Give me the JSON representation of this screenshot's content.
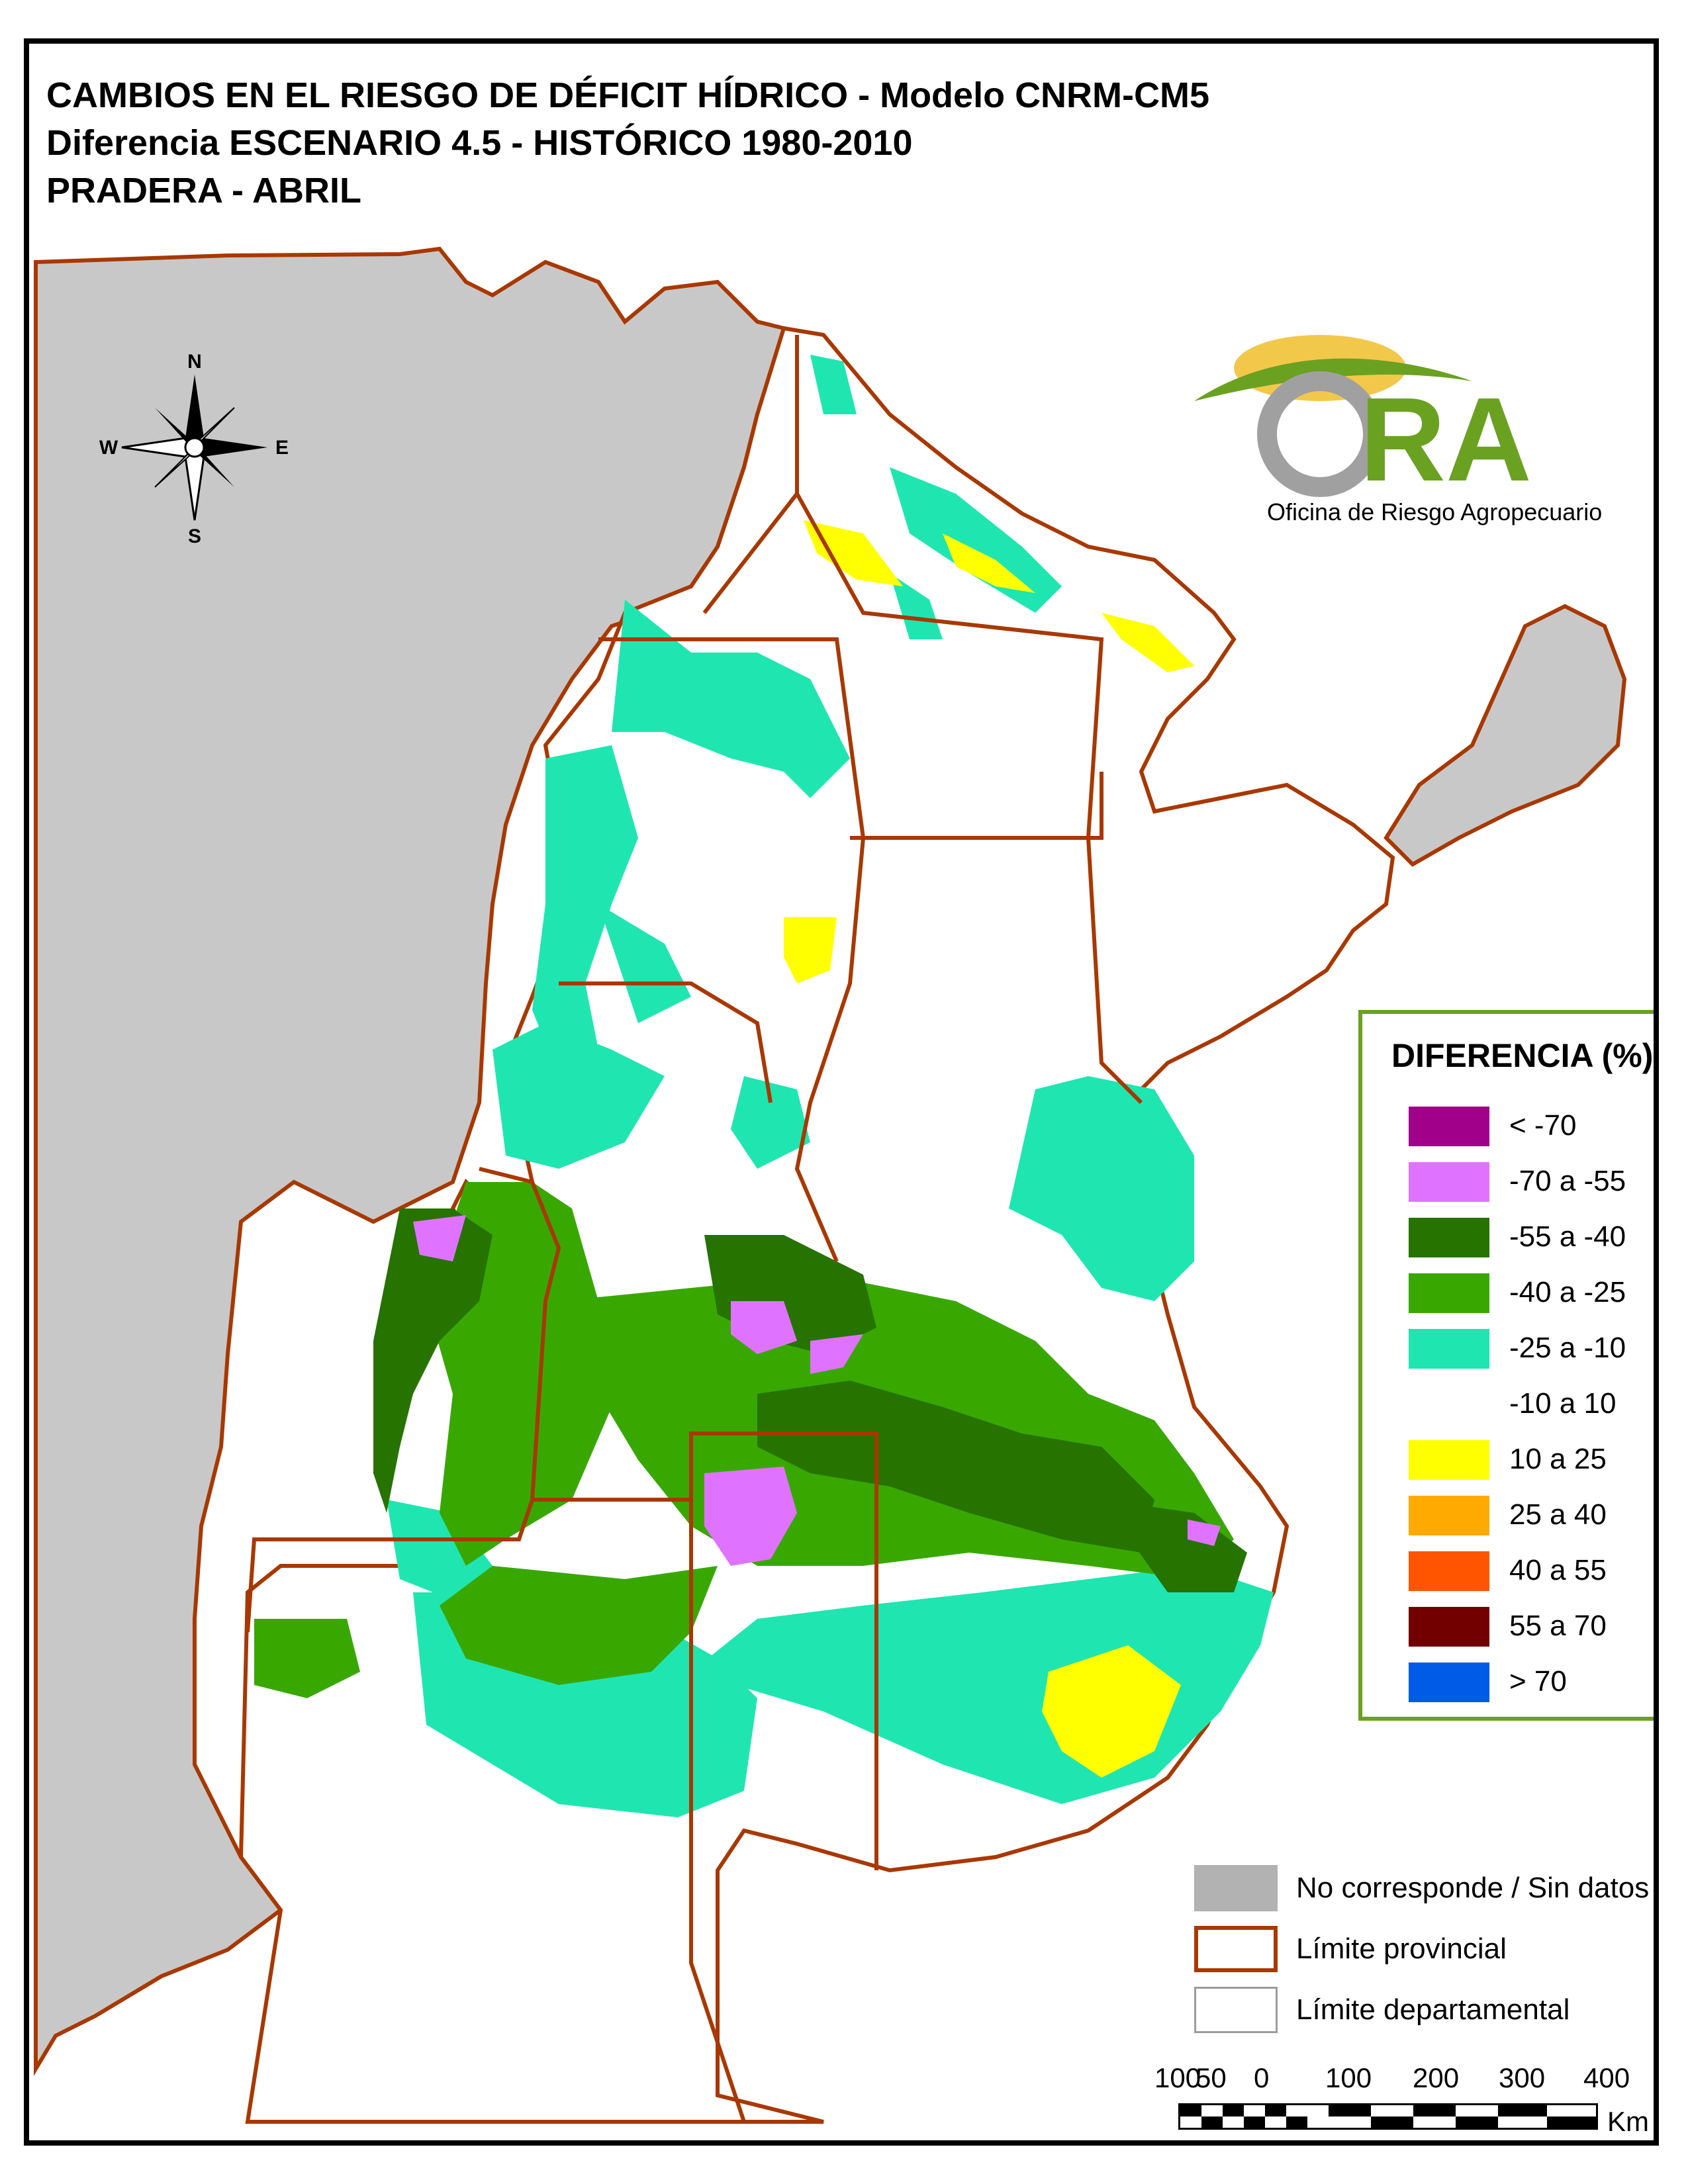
{
  "title": {
    "line1": "CAMBIOS EN EL RIESGO DE DÉFICIT HÍDRICO - Modelo CNRM-CM5",
    "line2": "Diferencia ESCENARIO 4.5 - HISTÓRICO 1980-2010",
    "line3": "PRADERA - ABRIL"
  },
  "compass": {
    "n": "N",
    "s": "S",
    "e": "E",
    "w": "W"
  },
  "logo": {
    "text": "ORA",
    "subtitle": "Oficina de Riesgo Agropecuario"
  },
  "legend": {
    "title": "DIFERENCIA (%)",
    "items": [
      {
        "label": "< -70",
        "color": "#a0008a"
      },
      {
        "label": "-70 a -55",
        "color": "#df73ff"
      },
      {
        "label": "-55 a -40",
        "color": "#267300"
      },
      {
        "label": "-40 a -25",
        "color": "#38a800"
      },
      {
        "label": "-25 a -10",
        "color": "#1fe6b0"
      },
      {
        "label": "-10 a 10",
        "color": "#ffffff"
      },
      {
        "label": "10 a 25",
        "color": "#ffff00"
      },
      {
        "label": "25 a 40",
        "color": "#ffaa00"
      },
      {
        "label": "40 a 55",
        "color": "#ff5500"
      },
      {
        "label": "55 a 70",
        "color": "#730000"
      },
      {
        "label": "> 70",
        "color": "#005ce6"
      }
    ]
  },
  "legend2": {
    "items": [
      {
        "label": "No corresponde / Sin datos",
        "color": "#b2b2b2"
      },
      {
        "label": "Límite provincial",
        "color": "#a83800"
      },
      {
        "label": "Límite departamental",
        "color": "#9c9c9c"
      }
    ]
  },
  "scale": {
    "labels": [
      "100",
      "50",
      "0",
      "100",
      "200",
      "300",
      "400"
    ],
    "unit": "Km"
  }
}
